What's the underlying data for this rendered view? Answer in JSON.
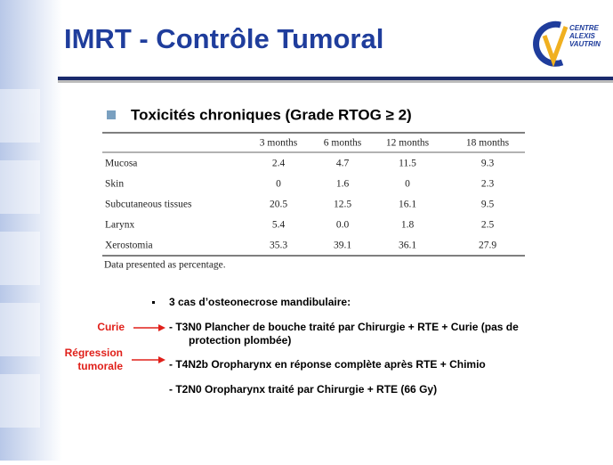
{
  "title": "IMRT - Contrôle Tumoral",
  "logo": {
    "lines": [
      "CENTRE",
      "ALEXIS",
      "VAUTRIN"
    ]
  },
  "subtitle": "Toxicités chroniques (Grade RTOG ≥ 2)",
  "table": {
    "header": [
      "",
      "3 months",
      "6 months",
      "12 months",
      "18 months"
    ],
    "rows": [
      [
        "Mucosa",
        "2.4",
        "4.7",
        "11.5",
        "9.3"
      ],
      [
        "Skin",
        "0",
        "1.6",
        "0",
        "2.3"
      ],
      [
        "Subcutaneous tissues",
        "20.5",
        "12.5",
        "16.1",
        "9.5"
      ],
      [
        "Larynx",
        "5.4",
        "0.0",
        "1.8",
        "2.5"
      ],
      [
        "Xerostomia",
        "35.3",
        "39.1",
        "36.1",
        "27.9"
      ]
    ],
    "note": "Data presented as percentage."
  },
  "bullet": "3 cas d’osteonecrose mandibulaire:",
  "items": [
    [
      "- T3N0 Plancher de bouche traité par Chirurgie + RTE + Curie (pas de",
      "protection plombée)"
    ],
    [
      "- T4N2b Oropharynx en réponse complète après RTE + Chimio"
    ],
    [
      "- T2N0 Oropharynx traité par Chirurgie + RTE (66 Gy)"
    ]
  ],
  "side_labels": {
    "curie": [
      "Curie"
    ],
    "regression": [
      "Régression",
      "tumorale"
    ]
  }
}
